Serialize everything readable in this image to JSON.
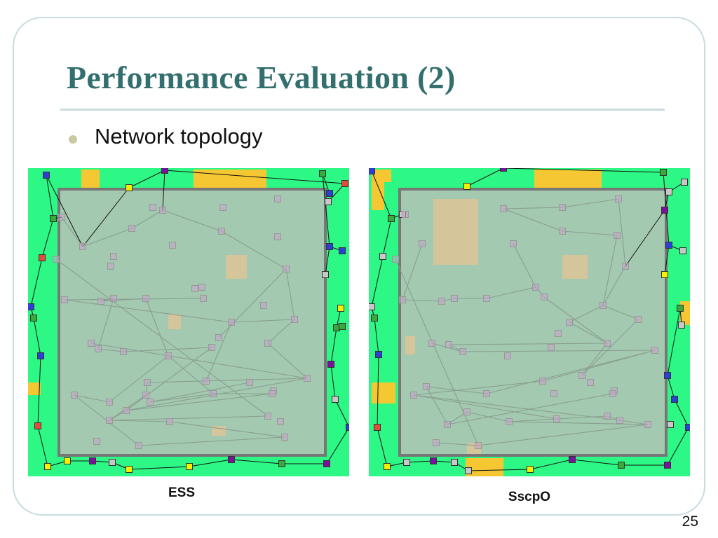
{
  "slide": {
    "title": "Performance Evaluation (2)",
    "bullet": "Network topology",
    "page_number": "25"
  },
  "panels": [
    {
      "caption": "ESS"
    },
    {
      "caption": "SscpO"
    }
  ],
  "colors": {
    "title": "#336f6e",
    "field_green": "#2ef885",
    "inner_area": "#a3c9b0",
    "terrain_yellow": "#f5c833",
    "terrain_tan": "#d4c59a",
    "border_gray": "#777777"
  }
}
